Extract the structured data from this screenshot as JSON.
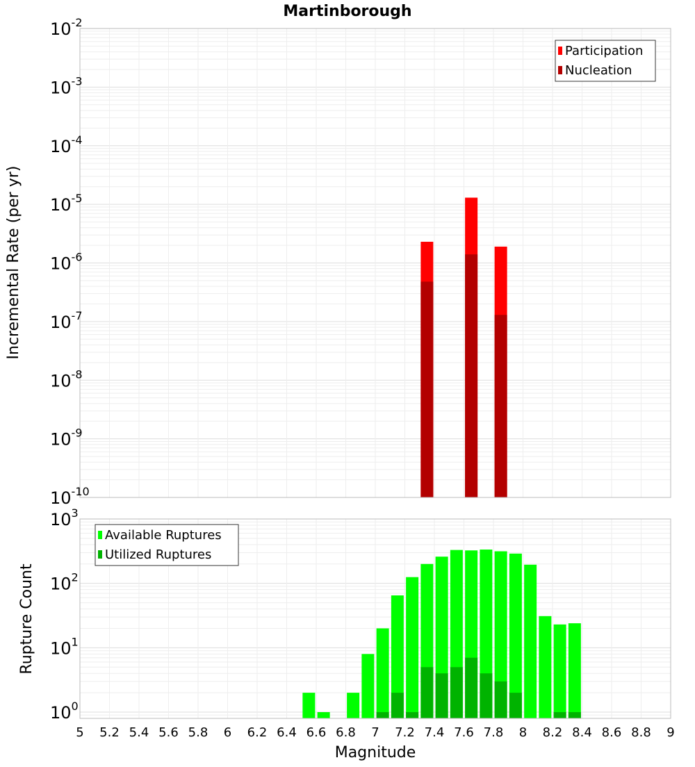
{
  "title": "Martinborough",
  "xlabel": "Magnitude",
  "x_ticks": [
    "5",
    "5.2",
    "5.4",
    "5.6",
    "5.8",
    "6",
    "6.2",
    "6.4",
    "6.6",
    "6.8",
    "7",
    "7.2",
    "7.4",
    "7.6",
    "7.8",
    "8",
    "8.2",
    "8.4",
    "8.6",
    "8.8",
    "9"
  ],
  "colors": {
    "participation": "#ff0000",
    "nucleation": "#b30000",
    "available": "#00ff00",
    "utilized": "#00b300",
    "grid": "#e8e8e8",
    "axis_border": "#bbbbbb"
  },
  "chart_data": [
    {
      "type": "bar",
      "title": "Martinborough",
      "xlabel": "Magnitude",
      "ylabel": "Incremental Rate (per yr)",
      "yscale": "log",
      "xlim": [
        5,
        9
      ],
      "ylim": [
        1e-10,
        0.01
      ],
      "y_tick_exponents": [
        "-10",
        "-9",
        "-8",
        "-7",
        "-6",
        "-5",
        "-4",
        "-3",
        "-2"
      ],
      "legend_position": "top-right",
      "series": [
        {
          "name": "Participation",
          "x": [
            7.35,
            7.65,
            7.85
          ],
          "values": [
            2.3e-06,
            1.3e-05,
            1.9e-06
          ]
        },
        {
          "name": "Nucleation",
          "x": [
            7.35,
            7.65,
            7.85
          ],
          "values": [
            4.8e-07,
            1.4e-06,
            1.3e-07
          ]
        }
      ]
    },
    {
      "type": "bar",
      "xlabel": "Magnitude",
      "ylabel": "Rupture Count",
      "yscale": "log",
      "xlim": [
        5,
        9
      ],
      "ylim": [
        0.8,
        1000
      ],
      "y_tick_exponents": [
        "0",
        "1",
        "2",
        "3"
      ],
      "legend_position": "top-left",
      "series": [
        {
          "name": "Available Ruptures",
          "x": [
            6.55,
            6.65,
            6.85,
            6.95,
            7.05,
            7.15,
            7.25,
            7.35,
            7.45,
            7.55,
            7.65,
            7.75,
            7.85,
            7.95,
            8.05,
            8.15,
            8.25,
            8.35
          ],
          "values": [
            2,
            1,
            2,
            8,
            20,
            65,
            125,
            200,
            260,
            330,
            325,
            335,
            315,
            290,
            195,
            31,
            23,
            24
          ]
        },
        {
          "name": "Utilized Ruptures",
          "x": [
            7.05,
            7.15,
            7.25,
            7.35,
            7.45,
            7.55,
            7.65,
            7.75,
            7.85,
            7.95,
            8.25,
            8.35
          ],
          "values": [
            1,
            2,
            1,
            5,
            4,
            5,
            7,
            4,
            3,
            2,
            1,
            1
          ]
        }
      ]
    }
  ]
}
